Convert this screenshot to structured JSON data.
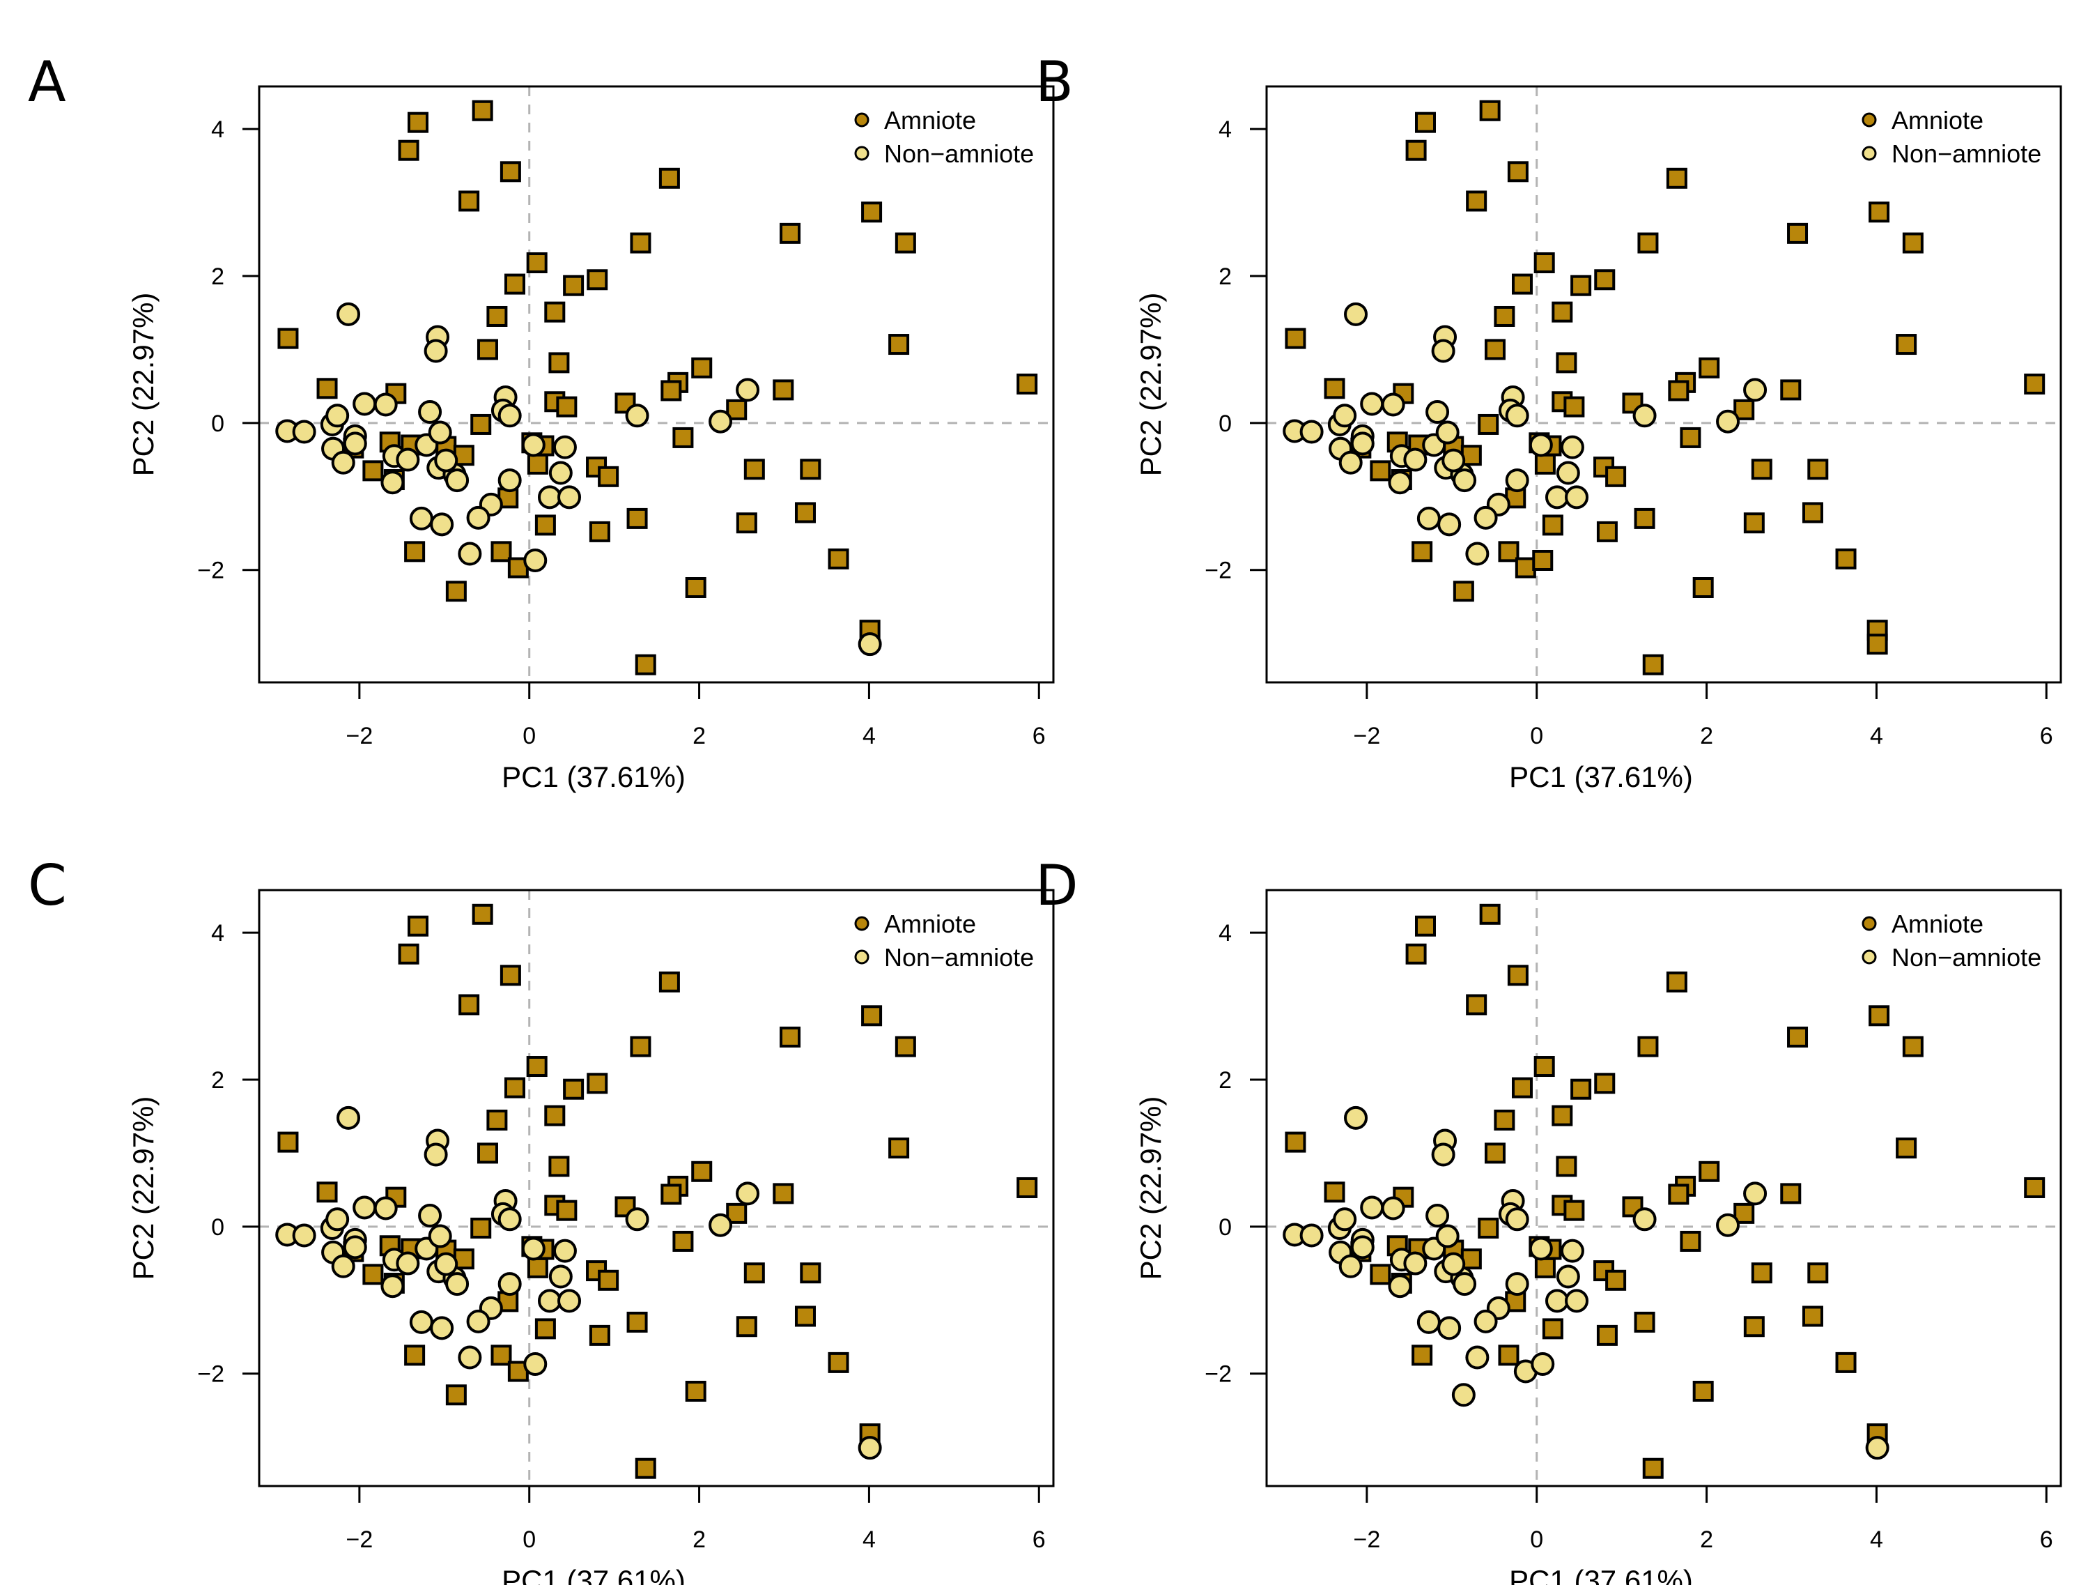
{
  "colors": {
    "amniote": "#B8860B",
    "non_amniote": "#F0E08C"
  },
  "chart_data": {
    "type": "scatter",
    "panels": [
      "A",
      "B",
      "C",
      "D"
    ],
    "xlabel": "PC1 (37.61%)",
    "ylabel": "PC2 (22.97%)",
    "xlim": [
      -3.18,
      6.17
    ],
    "ylim": [
      -3.53,
      4.58
    ],
    "xticks": [
      -2,
      0,
      2,
      4,
      6
    ],
    "yticks": [
      -2,
      0,
      2,
      4
    ],
    "xtick_labels": [
      "−2",
      "0",
      "2",
      "4",
      "6"
    ],
    "ytick_labels": [
      "−2",
      "0",
      "2",
      "4"
    ],
    "reference_lines": {
      "x": 0,
      "y": 0
    },
    "grid": false,
    "legend": {
      "position": "top-right",
      "entries": [
        "Amniote",
        "Non−amniote"
      ]
    },
    "points": [
      {
        "x": -2.84,
        "y": 1.15,
        "g": "aaaa"
      },
      {
        "x": -2.38,
        "y": 0.47,
        "g": "aaaa"
      },
      {
        "x": -1.57,
        "y": 0.4,
        "g": "aaaa"
      },
      {
        "x": -1.42,
        "y": 3.71,
        "g": "aaaa"
      },
      {
        "x": -1.31,
        "y": 4.09,
        "g": "aaaa"
      },
      {
        "x": -0.55,
        "y": 4.25,
        "g": "aaaa"
      },
      {
        "x": -0.71,
        "y": 3.02,
        "g": "aaaa"
      },
      {
        "x": -0.22,
        "y": 3.42,
        "g": "aaaa"
      },
      {
        "x": 0.09,
        "y": 2.18,
        "g": "aaaa"
      },
      {
        "x": -0.17,
        "y": 1.89,
        "g": "aaaa"
      },
      {
        "x": 0.52,
        "y": 1.87,
        "g": "aaaa"
      },
      {
        "x": 0.8,
        "y": 1.95,
        "g": "aaaa"
      },
      {
        "x": -0.38,
        "y": 1.45,
        "g": "aaaa"
      },
      {
        "x": 0.3,
        "y": 1.51,
        "g": "aaaa"
      },
      {
        "x": -0.49,
        "y": 1.0,
        "g": "aaaa"
      },
      {
        "x": 0.35,
        "y": 0.82,
        "g": "aaaa"
      },
      {
        "x": 1.31,
        "y": 2.45,
        "g": "aaaa"
      },
      {
        "x": 1.65,
        "y": 3.33,
        "g": "aaaa"
      },
      {
        "x": 3.07,
        "y": 2.58,
        "g": "aaaa"
      },
      {
        "x": 4.03,
        "y": 2.87,
        "g": "aaaa"
      },
      {
        "x": 4.43,
        "y": 2.45,
        "g": "aaaa"
      },
      {
        "x": 4.35,
        "y": 1.07,
        "g": "aaaa"
      },
      {
        "x": 5.86,
        "y": 0.53,
        "g": "aaaa"
      },
      {
        "x": 2.99,
        "y": 0.45,
        "g": "aaaa"
      },
      {
        "x": 2.03,
        "y": 0.75,
        "g": "aaaa"
      },
      {
        "x": 1.75,
        "y": 0.55,
        "g": "aaaa"
      },
      {
        "x": 1.67,
        "y": 0.44,
        "g": "aaaa"
      },
      {
        "x": 1.13,
        "y": 0.27,
        "g": "aaaa"
      },
      {
        "x": 2.44,
        "y": 0.18,
        "g": "aaaa"
      },
      {
        "x": 0.3,
        "y": 0.29,
        "g": "aaaa"
      },
      {
        "x": 0.44,
        "y": 0.22,
        "g": "aaaa"
      },
      {
        "x": 1.81,
        "y": -0.2,
        "g": "aaaa"
      },
      {
        "x": 2.65,
        "y": -0.63,
        "g": "aaaa"
      },
      {
        "x": 3.31,
        "y": -0.63,
        "g": "aaaa"
      },
      {
        "x": 0.79,
        "y": -0.6,
        "g": "aaaa"
      },
      {
        "x": 0.93,
        "y": -0.73,
        "g": "aaaa"
      },
      {
        "x": 3.25,
        "y": -1.22,
        "g": "aaaa"
      },
      {
        "x": 2.56,
        "y": -1.36,
        "g": "aaaa"
      },
      {
        "x": 1.27,
        "y": -1.3,
        "g": "aaaa"
      },
      {
        "x": 0.83,
        "y": -1.48,
        "g": "aaaa"
      },
      {
        "x": 0.19,
        "y": -1.39,
        "g": "aaaa"
      },
      {
        "x": 3.64,
        "y": -1.85,
        "g": "aaaa"
      },
      {
        "x": 1.96,
        "y": -2.24,
        "g": "aaaa"
      },
      {
        "x": 4.01,
        "y": -2.82,
        "g": "aaaa"
      },
      {
        "x": 1.37,
        "y": -3.29,
        "g": "aaaa"
      },
      {
        "x": -0.57,
        "y": -0.02,
        "g": "aaaa"
      },
      {
        "x": -0.25,
        "y": -1.02,
        "g": "aaaa"
      },
      {
        "x": 0.1,
        "y": -0.56,
        "g": "aaaa"
      },
      {
        "x": 0.03,
        "y": -0.27,
        "g": "aaaa"
      },
      {
        "x": 0.17,
        "y": -0.31,
        "g": "aaaa"
      },
      {
        "x": -1.35,
        "y": -1.75,
        "g": "aaaa"
      },
      {
        "x": -0.33,
        "y": -1.75,
        "g": "aaaa"
      },
      {
        "x": -0.86,
        "y": -2.29,
        "g": "aaan"
      },
      {
        "x": -0.13,
        "y": -1.97,
        "g": "aaan"
      },
      {
        "x": -1.84,
        "y": -0.65,
        "g": "aaaa"
      },
      {
        "x": -1.59,
        "y": -0.77,
        "g": "aaaa"
      },
      {
        "x": -1.39,
        "y": -0.3,
        "g": "aaaa"
      },
      {
        "x": -1.64,
        "y": -0.26,
        "g": "aaaa"
      },
      {
        "x": -0.98,
        "y": -0.32,
        "g": "aaaa"
      },
      {
        "x": -0.77,
        "y": -0.44,
        "g": "aaaa"
      },
      {
        "x": -2.07,
        "y": -0.34,
        "g": "aaaa"
      },
      {
        "x": 4.01,
        "y": -3.01,
        "g": "nanna"
      },
      {
        "x": 0.07,
        "y": -1.87,
        "g": "nanna"
      },
      {
        "x": -2.85,
        "y": -0.11,
        "g": "nnnn"
      },
      {
        "x": -2.65,
        "y": -0.12,
        "g": "nnnn"
      },
      {
        "x": -2.32,
        "y": -0.02,
        "g": "nnnn"
      },
      {
        "x": -2.26,
        "y": 0.1,
        "g": "nnnn"
      },
      {
        "x": -2.31,
        "y": -0.35,
        "g": "nnnn"
      },
      {
        "x": -2.19,
        "y": -0.54,
        "g": "nnnn"
      },
      {
        "x": -2.05,
        "y": -0.18,
        "g": "nnnn"
      },
      {
        "x": -2.05,
        "y": -0.28,
        "g": "nnnn"
      },
      {
        "x": -2.13,
        "y": 1.48,
        "g": "nnnn"
      },
      {
        "x": -1.94,
        "y": 0.26,
        "g": "nnnn"
      },
      {
        "x": -1.69,
        "y": 0.25,
        "g": "nnnn"
      },
      {
        "x": -1.59,
        "y": -0.45,
        "g": "nnnn"
      },
      {
        "x": -1.61,
        "y": -0.81,
        "g": "nnnn"
      },
      {
        "x": -1.43,
        "y": -0.5,
        "g": "nnnn"
      },
      {
        "x": -1.17,
        "y": 0.15,
        "g": "nnnn"
      },
      {
        "x": -1.21,
        "y": -0.3,
        "g": "nnnn"
      },
      {
        "x": -1.07,
        "y": -0.61,
        "g": "nnnn"
      },
      {
        "x": -1.05,
        "y": -0.13,
        "g": "nnnn"
      },
      {
        "x": -1.08,
        "y": 1.17,
        "g": "nnnn"
      },
      {
        "x": -1.1,
        "y": 0.98,
        "g": "nnnn"
      },
      {
        "x": -0.88,
        "y": -0.7,
        "g": "nnnn"
      },
      {
        "x": -0.85,
        "y": -0.78,
        "g": "nnnn"
      },
      {
        "x": -0.98,
        "y": -0.51,
        "g": "nnnn"
      },
      {
        "x": -0.28,
        "y": 0.35,
        "g": "nnnn"
      },
      {
        "x": -0.31,
        "y": 0.17,
        "g": "nnnn"
      },
      {
        "x": -0.23,
        "y": 0.1,
        "g": "nnnn"
      },
      {
        "x": -0.23,
        "y": -0.78,
        "g": "nnnn"
      },
      {
        "x": -0.45,
        "y": -1.11,
        "g": "nnnn"
      },
      {
        "x": -0.6,
        "y": -1.29,
        "g": "nnnn"
      },
      {
        "x": -1.27,
        "y": -1.3,
        "g": "nnnn"
      },
      {
        "x": -1.03,
        "y": -1.38,
        "g": "nnnn"
      },
      {
        "x": -0.7,
        "y": -1.78,
        "g": "nnnn"
      },
      {
        "x": 0.05,
        "y": -0.3,
        "g": "nnnn"
      },
      {
        "x": 0.37,
        "y": -0.68,
        "g": "nnnn"
      },
      {
        "x": 0.42,
        "y": -0.33,
        "g": "nnnn"
      },
      {
        "x": 0.24,
        "y": -1.01,
        "g": "nnnn"
      },
      {
        "x": 0.47,
        "y": -1.01,
        "g": "nnnn"
      },
      {
        "x": 1.27,
        "y": 0.1,
        "g": "nnnn"
      },
      {
        "x": 2.25,
        "y": 0.02,
        "g": "nnnn"
      },
      {
        "x": 2.57,
        "y": 0.45,
        "g": "nnnn"
      }
    ]
  }
}
